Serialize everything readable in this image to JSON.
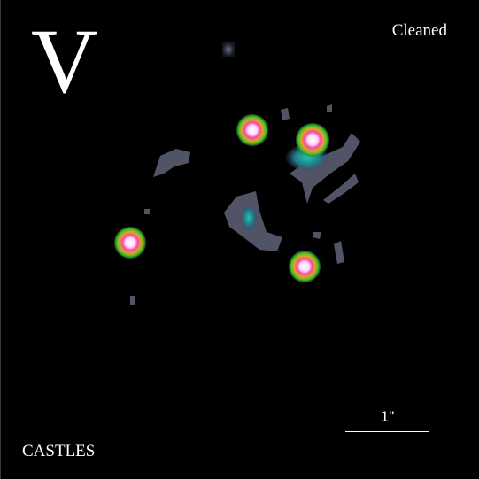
{
  "image": {
    "band": "V",
    "processing": "Cleaned",
    "survey": "CASTLES",
    "scale_label": "1\""
  },
  "colors": {
    "background": "#000000",
    "text": "#ffffff",
    "faint_emission": "#5a5e70",
    "galaxy_core": "#1fa890",
    "source_center": "#ffffff",
    "source_ring_inner": "#e8359a",
    "source_ring_mid": "#e8b020",
    "source_ring_outer": "#3fbf2a"
  }
}
